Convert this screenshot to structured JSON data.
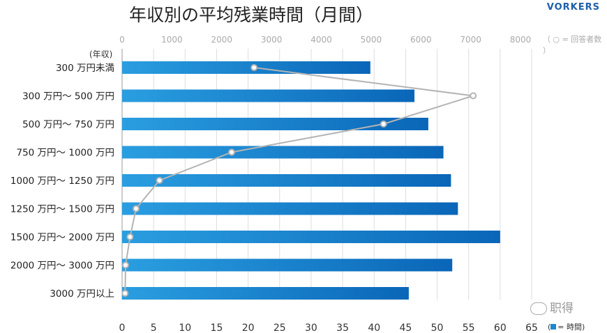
{
  "title": "年収別の平均残業時間（月間）",
  "brand": "VORKERS",
  "legend_top": "（ ○ = 回答者数 ）",
  "legend_bottom": "= 時間",
  "y_header": "(年収)",
  "watermark": "职得",
  "colors": {
    "bar_start": "#2a9ee0",
    "bar_end": "#0a66b8",
    "line": "#b4b4b4",
    "grid": "#dddddd"
  },
  "chart_data": {
    "type": "bar",
    "categories": [
      "300 万円未満",
      "300 万円〜 500 万円",
      "500 万円〜 750 万円",
      "750 万円〜 1000 万円",
      "1000 万円〜 1250 万円",
      "1250 万円〜 1500 万円",
      "1500 万円〜 2000 万円",
      "2000 万円〜 3000 万円",
      "3000 万円以上"
    ],
    "series": [
      {
        "name": "時間",
        "values": [
          39.4,
          46.4,
          48.6,
          51.0,
          52.2,
          53.3,
          60.0,
          52.4,
          45.5
        ]
      },
      {
        "name": "回答者数",
        "values": [
          2650,
          7050,
          5250,
          2200,
          750,
          280,
          160,
          70,
          60
        ]
      }
    ],
    "x_bottom": {
      "min": 0,
      "max": 65,
      "ticks": [
        0,
        5,
        10,
        15,
        20,
        25,
        30,
        35,
        40,
        45,
        50,
        55,
        60,
        65
      ]
    },
    "x_top": {
      "min": 0,
      "max": 8000,
      "ticks": [
        0,
        1000,
        2000,
        3000,
        4000,
        5000,
        6000,
        7000,
        8000
      ]
    }
  }
}
